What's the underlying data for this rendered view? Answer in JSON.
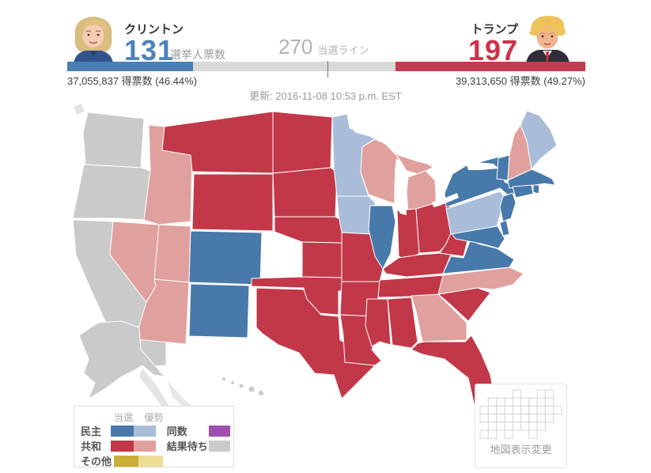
{
  "header": {
    "clinton": {
      "name": "クリントン",
      "electoral_votes": "131",
      "ev_unit_label": "選挙人票数",
      "popular": "37,055,837 得票数 (46.44%)",
      "accent": "#4d82ba",
      "avatar": "clinton-portrait"
    },
    "trump": {
      "name": "トランプ",
      "electoral_votes": "197",
      "popular": "39,313,650 得票数 (49.27%)",
      "accent": "#d03048",
      "avatar": "trump-portrait"
    },
    "threshold": {
      "value": "270",
      "label": "当選ライン"
    },
    "updated": "更新: 2016-11-08 10:53 p.m. EST"
  },
  "bar": {
    "clinton_ev": 131,
    "trump_ev": 197,
    "threshold": 270,
    "total": 538
  },
  "colors": {
    "dem_won": "#4779ab",
    "dem_lead": "#a9bdd9",
    "rep_won": "#c23848",
    "rep_lead": "#e0a09d",
    "other_won": "#c9ae39",
    "other_lead": "#ecdc96",
    "tie": "#a04fb0",
    "waiting": "#cacaca"
  },
  "legend": {
    "col_headers": [
      "当選",
      "優勢"
    ],
    "rows": [
      {
        "label": "民主",
        "won": "dem_won",
        "lead": "dem_lead",
        "label2": "同数",
        "color2": "tie"
      },
      {
        "label": "共和",
        "won": "rep_won",
        "lead": "rep_lead",
        "label2": "結果待ち",
        "color2": "waiting"
      },
      {
        "label": "その他",
        "won": "other_won",
        "lead": "other_lead"
      }
    ]
  },
  "map_toggle": {
    "label": "地図表示変更",
    "icon": "cartogram-icon",
    "icon_cells": [
      [
        0,
        4
      ],
      [
        0,
        7
      ],
      [
        0,
        8
      ],
      [
        1,
        1
      ],
      [
        1,
        2
      ],
      [
        1,
        3
      ],
      [
        1,
        4
      ],
      [
        1,
        5
      ],
      [
        1,
        6
      ],
      [
        1,
        7
      ],
      [
        1,
        8
      ],
      [
        2,
        0
      ],
      [
        2,
        1
      ],
      [
        2,
        2
      ],
      [
        2,
        3
      ],
      [
        2,
        4
      ],
      [
        2,
        5
      ],
      [
        2,
        6
      ],
      [
        2,
        7
      ],
      [
        2,
        8
      ],
      [
        2,
        9
      ],
      [
        3,
        0
      ],
      [
        3,
        1
      ],
      [
        3,
        2
      ],
      [
        3,
        3
      ],
      [
        3,
        4
      ],
      [
        3,
        5
      ],
      [
        3,
        6
      ],
      [
        3,
        7
      ],
      [
        3,
        8
      ],
      [
        4,
        1
      ],
      [
        4,
        2
      ],
      [
        4,
        3
      ],
      [
        4,
        4
      ],
      [
        4,
        5
      ],
      [
        4,
        6
      ],
      [
        4,
        7
      ],
      [
        5,
        0
      ],
      [
        5,
        1
      ],
      [
        5,
        3
      ],
      [
        5,
        6
      ]
    ]
  },
  "map": {
    "states": {
      "WA": "waiting",
      "OR": "waiting",
      "CA": "waiting",
      "AK": "waiting",
      "HI": "waiting",
      "NV": "rep_lead",
      "ID": "rep_lead",
      "UT": "rep_lead",
      "AZ": "rep_lead",
      "MT": "rep_won",
      "WY": "rep_won",
      "ND": "rep_won",
      "SD": "rep_won",
      "NE": "rep_won",
      "KS": "rep_won",
      "OK": "rep_won",
      "TX": "rep_won",
      "MO": "rep_won",
      "AR": "rep_won",
      "LA": "rep_won",
      "IN": "rep_won",
      "OH": "rep_won",
      "KY": "rep_won",
      "TN": "rep_won",
      "WV": "rep_won",
      "SC": "rep_won",
      "AL": "rep_won",
      "MS": "rep_won",
      "FL": "rep_won",
      "WI": "rep_lead",
      "MI": "rep_lead",
      "GA": "rep_lead",
      "NC": "rep_lead",
      "NH": "rep_lead",
      "CO": "dem_won",
      "NM": "dem_won",
      "IL": "dem_won",
      "NY": "dem_won",
      "VT": "dem_won",
      "MA": "dem_won",
      "RI": "dem_won",
      "CT": "dem_won",
      "NJ": "dem_won",
      "DE": "dem_won",
      "MD": "dem_won",
      "VA": "dem_won",
      "MN": "dem_lead",
      "IA": "dem_lead",
      "PA": "dem_lead",
      "ME": "dem_lead"
    }
  }
}
